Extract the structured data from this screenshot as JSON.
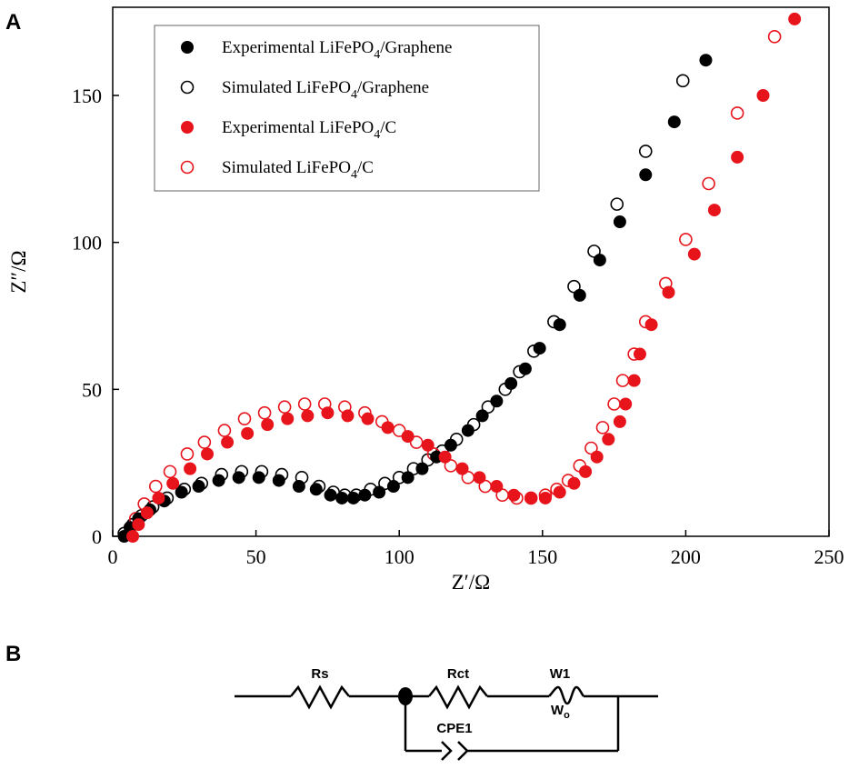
{
  "panels": {
    "a_label": "A",
    "b_label": "B"
  },
  "chart_data": {
    "type": "scatter",
    "title": "",
    "xlabel": "Z′/Ω",
    "ylabel": "Z″/Ω",
    "xlim": [
      0,
      250
    ],
    "ylim": [
      0,
      180
    ],
    "xticks": [
      0,
      50,
      100,
      150,
      200,
      250
    ],
    "yticks": [
      0,
      50,
      100,
      150
    ],
    "grid": false,
    "legend_position": "top-left",
    "series": [
      {
        "name": "Experimental LiFePO4/Graphene",
        "legend": {
          "pre": "Experimental LiFePO",
          "sub": "4",
          "post": "/Graphene"
        },
        "color": "#000000",
        "marker": "filled-circle",
        "points": [
          [
            4,
            0
          ],
          [
            6,
            3
          ],
          [
            9,
            6
          ],
          [
            13,
            9
          ],
          [
            18,
            12
          ],
          [
            24,
            15
          ],
          [
            30,
            17
          ],
          [
            37,
            19
          ],
          [
            44,
            20
          ],
          [
            51,
            20
          ],
          [
            58,
            19
          ],
          [
            65,
            17
          ],
          [
            71,
            16
          ],
          [
            76,
            14
          ],
          [
            80,
            13
          ],
          [
            84,
            13
          ],
          [
            88,
            14
          ],
          [
            93,
            15
          ],
          [
            98,
            17
          ],
          [
            103,
            20
          ],
          [
            108,
            23
          ],
          [
            113,
            27
          ],
          [
            118,
            31
          ],
          [
            124,
            36
          ],
          [
            129,
            41
          ],
          [
            134,
            46
          ],
          [
            139,
            52
          ],
          [
            144,
            57
          ],
          [
            149,
            64
          ],
          [
            156,
            72
          ],
          [
            163,
            82
          ],
          [
            170,
            94
          ],
          [
            177,
            107
          ],
          [
            186,
            123
          ],
          [
            196,
            141
          ],
          [
            207,
            162
          ]
        ]
      },
      {
        "name": "Simulated LiFePO4/Graphene",
        "legend": {
          "pre": "Simulated LiFePO",
          "sub": "4",
          "post": "/Graphene"
        },
        "color": "#000000",
        "marker": "open-circle",
        "points": [
          [
            4,
            1
          ],
          [
            7,
            4
          ],
          [
            10,
            7
          ],
          [
            14,
            10
          ],
          [
            19,
            13
          ],
          [
            25,
            16
          ],
          [
            31,
            18
          ],
          [
            38,
            21
          ],
          [
            45,
            22
          ],
          [
            52,
            22
          ],
          [
            59,
            21
          ],
          [
            66,
            20
          ],
          [
            72,
            17
          ],
          [
            77,
            15
          ],
          [
            81,
            14
          ],
          [
            85,
            14
          ],
          [
            90,
            16
          ],
          [
            95,
            18
          ],
          [
            100,
            20
          ],
          [
            105,
            23
          ],
          [
            110,
            26
          ],
          [
            115,
            29
          ],
          [
            120,
            33
          ],
          [
            126,
            38
          ],
          [
            131,
            44
          ],
          [
            137,
            50
          ],
          [
            142,
            56
          ],
          [
            147,
            63
          ],
          [
            154,
            73
          ],
          [
            161,
            85
          ],
          [
            168,
            97
          ],
          [
            176,
            113
          ],
          [
            186,
            131
          ],
          [
            199,
            155
          ]
        ]
      },
      {
        "name": "Experimental LiFePO4/C",
        "legend": {
          "pre": "Experimental LiFePO",
          "sub": "4",
          "post": "/C"
        },
        "color": "#e8141c",
        "marker": "filled-circle",
        "points": [
          [
            7,
            0
          ],
          [
            9,
            4
          ],
          [
            12,
            8
          ],
          [
            16,
            13
          ],
          [
            21,
            18
          ],
          [
            27,
            23
          ],
          [
            33,
            28
          ],
          [
            40,
            32
          ],
          [
            47,
            35
          ],
          [
            54,
            38
          ],
          [
            61,
            40
          ],
          [
            68,
            41
          ],
          [
            75,
            42
          ],
          [
            82,
            41
          ],
          [
            89,
            40
          ],
          [
            96,
            37
          ],
          [
            103,
            34
          ],
          [
            110,
            31
          ],
          [
            116,
            27
          ],
          [
            122,
            23
          ],
          [
            128,
            20
          ],
          [
            134,
            17
          ],
          [
            140,
            14
          ],
          [
            146,
            13
          ],
          [
            151,
            13
          ],
          [
            156,
            15
          ],
          [
            161,
            18
          ],
          [
            165,
            22
          ],
          [
            169,
            27
          ],
          [
            173,
            33
          ],
          [
            177,
            39
          ],
          [
            179,
            45
          ],
          [
            182,
            53
          ],
          [
            184,
            62
          ],
          [
            188,
            72
          ],
          [
            194,
            83
          ],
          [
            203,
            96
          ],
          [
            210,
            111
          ],
          [
            218,
            129
          ],
          [
            227,
            150
          ],
          [
            238,
            176
          ]
        ]
      },
      {
        "name": "Simulated LiFePO4/C",
        "legend": {
          "pre": "Simulated LiFePO",
          "sub": "4",
          "post": "/C"
        },
        "color": "#e8141c",
        "marker": "open-circle",
        "points": [
          [
            6,
            1
          ],
          [
            8,
            6
          ],
          [
            11,
            11
          ],
          [
            15,
            17
          ],
          [
            20,
            22
          ],
          [
            26,
            28
          ],
          [
            32,
            32
          ],
          [
            39,
            36
          ],
          [
            46,
            40
          ],
          [
            53,
            42
          ],
          [
            60,
            44
          ],
          [
            67,
            45
          ],
          [
            74,
            45
          ],
          [
            81,
            44
          ],
          [
            88,
            42
          ],
          [
            94,
            39
          ],
          [
            100,
            36
          ],
          [
            106,
            32
          ],
          [
            112,
            28
          ],
          [
            118,
            24
          ],
          [
            124,
            20
          ],
          [
            130,
            17
          ],
          [
            136,
            14
          ],
          [
            141,
            13
          ],
          [
            146,
            13
          ],
          [
            151,
            14
          ],
          [
            155,
            16
          ],
          [
            159,
            19
          ],
          [
            163,
            24
          ],
          [
            167,
            30
          ],
          [
            171,
            37
          ],
          [
            175,
            45
          ],
          [
            178,
            53
          ],
          [
            182,
            62
          ],
          [
            186,
            73
          ],
          [
            193,
            86
          ],
          [
            200,
            101
          ],
          [
            208,
            120
          ],
          [
            218,
            144
          ],
          [
            231,
            170
          ]
        ]
      }
    ]
  },
  "circuit": {
    "rs_label": "Rs",
    "rct_label": "Rct",
    "w1_label": "W1",
    "wo_label": "W",
    "wo_sub": "o",
    "cpe1_label": "CPE1"
  }
}
